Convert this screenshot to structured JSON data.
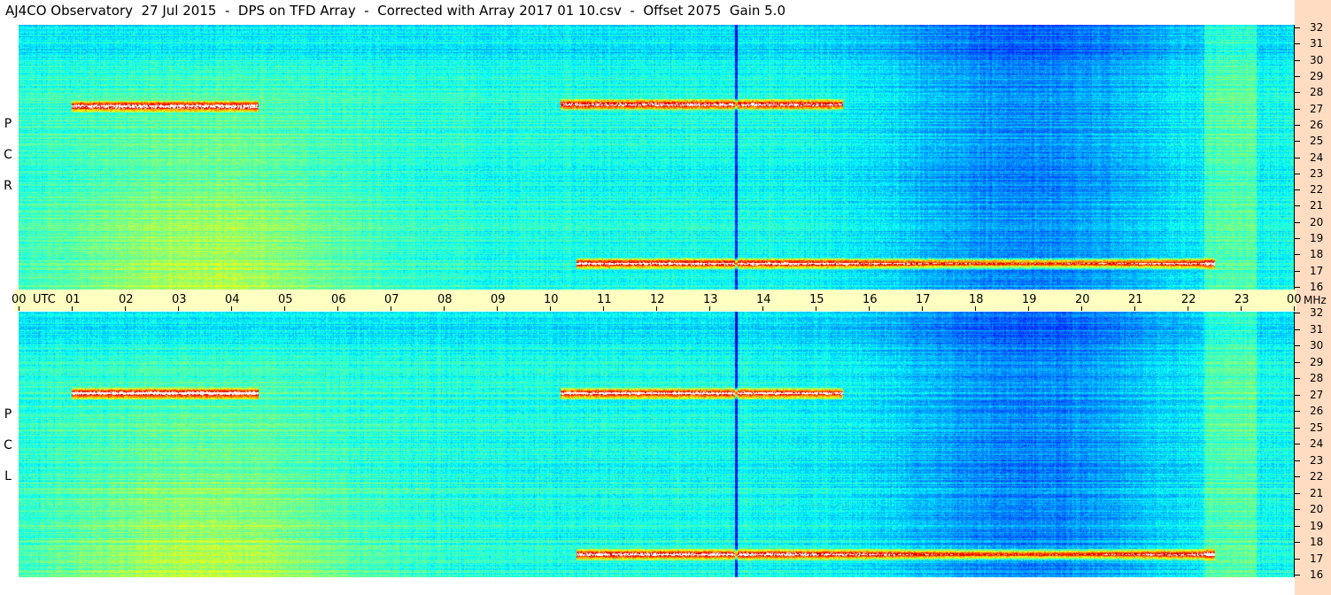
{
  "title": "AJ4CO Observatory  27 Jul 2015  -  DPS on TFD Array  -  Corrected with Array 2017 01 10.csv  -  Offset 2075  Gain 5.0",
  "colors": {
    "background": "#ffffff",
    "utc_band": "#ffffc2",
    "right_strip": "#ffdcc2",
    "text": "#000000"
  },
  "chart_data": [
    {
      "type": "heatmap",
      "polarization_label": [
        "R",
        "C",
        "P"
      ],
      "x_axis": {
        "unit": "UTC",
        "range": [
          0,
          24
        ],
        "tick_labels": [
          "00",
          "01",
          "02",
          "03",
          "04",
          "05",
          "06",
          "07",
          "08",
          "09",
          "10",
          "11",
          "12",
          "13",
          "14",
          "15",
          "16",
          "17",
          "18",
          "19",
          "20",
          "21",
          "22",
          "23",
          "00"
        ]
      },
      "y_axis": {
        "unit": "MHz",
        "range": [
          16,
          32
        ],
        "tick_labels": [
          "32",
          "31",
          "30",
          "29",
          "28",
          "27",
          "26",
          "25",
          "24",
          "23",
          "22",
          "21",
          "20",
          "19",
          "18",
          "17",
          "16"
        ]
      },
      "colormap": "jet",
      "features": [
        {
          "kind": "burst",
          "utc": [
            10.2,
            15.5
          ],
          "mhz": 27.2
        },
        {
          "kind": "burst",
          "utc": [
            1.0,
            4.5
          ],
          "mhz": 27.1
        },
        {
          "kind": "burst",
          "utc": [
            10.5,
            22.5
          ],
          "mhz": 17.6
        },
        {
          "kind": "vertical-line",
          "utc": 13.5
        }
      ]
    },
    {
      "type": "heatmap",
      "polarization_label": [
        "L",
        "C",
        "P"
      ],
      "x_axis": {
        "unit": "UTC",
        "range": [
          0,
          24
        ]
      },
      "y_axis": {
        "unit": "MHz",
        "range": [
          16,
          32
        ],
        "tick_labels": [
          "32",
          "31",
          "30",
          "29",
          "28",
          "27",
          "26",
          "25",
          "24",
          "23",
          "22",
          "21",
          "20",
          "19",
          "18",
          "17",
          "16"
        ]
      },
      "colormap": "jet",
      "features": [
        {
          "kind": "burst",
          "utc": [
            10.2,
            15.5
          ],
          "mhz": 27.1
        },
        {
          "kind": "burst",
          "utc": [
            1.0,
            4.5
          ],
          "mhz": 27.1
        },
        {
          "kind": "burst",
          "utc": [
            10.5,
            22.5
          ],
          "mhz": 17.4
        },
        {
          "kind": "vertical-line",
          "utc": 13.5
        }
      ]
    }
  ]
}
